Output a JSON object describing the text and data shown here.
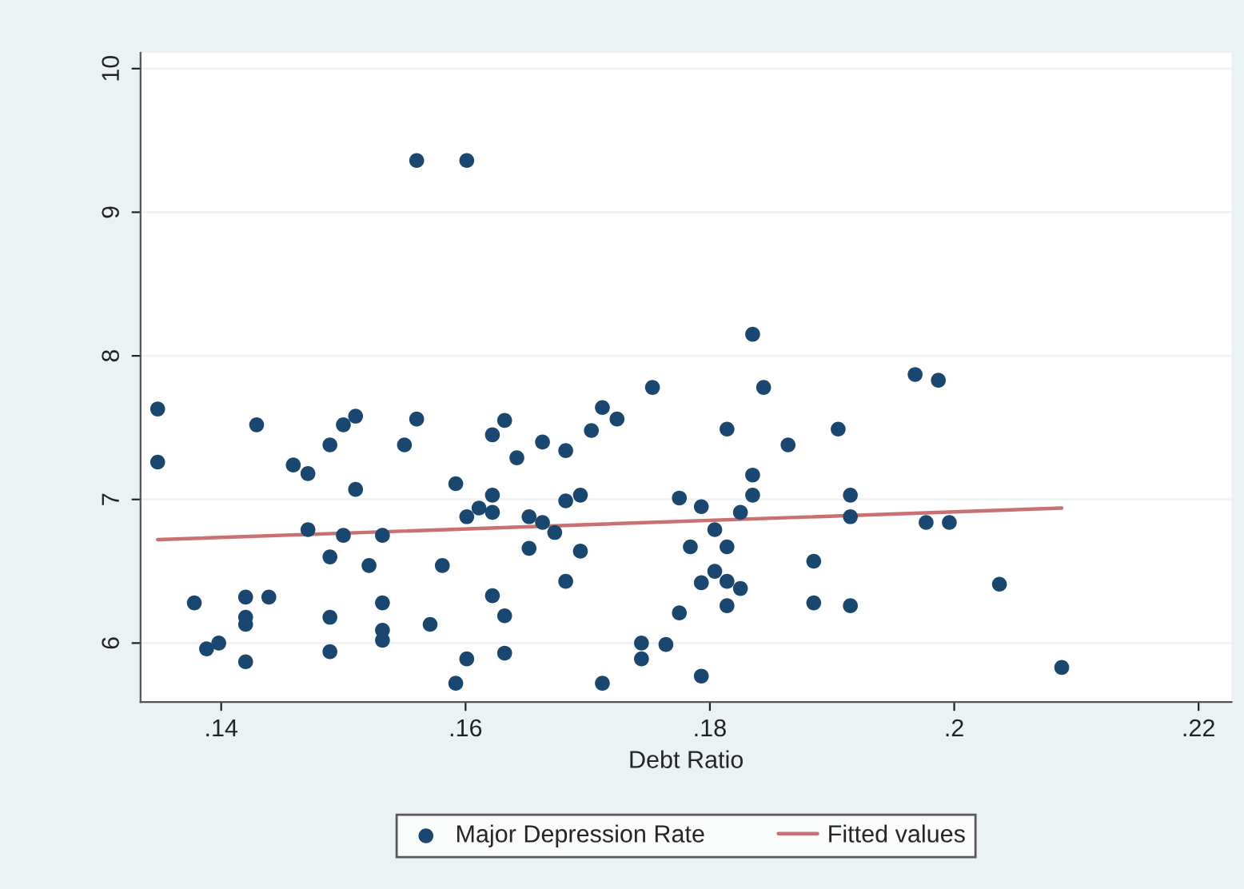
{
  "chart_data": {
    "type": "scatter",
    "xlabel": "Debt Ratio",
    "xlim": [
      0.1334,
      0.2227
    ],
    "ylim": [
      5.59,
      10.11
    ],
    "xticks": [
      {
        "value": 0.14,
        "label": ".14"
      },
      {
        "value": 0.16,
        "label": ".16"
      },
      {
        "value": 0.18,
        "label": ".18"
      },
      {
        "value": 0.2,
        "label": ".2"
      },
      {
        "value": 0.22,
        "label": ".22"
      }
    ],
    "yticks": [
      6,
      7,
      8,
      9,
      10
    ],
    "grid": "y",
    "legend": "bottom",
    "series": [
      {
        "name": "Major Depression Rate",
        "marker": "circle",
        "color": "#1a476f",
        "x": [
          0.1348,
          0.1348,
          0.1378,
          0.1388,
          0.1398,
          0.142,
          0.142,
          0.142,
          0.142,
          0.1429,
          0.1439,
          0.1459,
          0.1471,
          0.1471,
          0.1489,
          0.1489,
          0.1489,
          0.1489,
          0.15,
          0.15,
          0.151,
          0.151,
          0.1521,
          0.1532,
          0.1532,
          0.1532,
          0.1532,
          0.155,
          0.156,
          0.156,
          0.1601,
          0.1571,
          0.1581,
          0.1592,
          0.1592,
          0.1601,
          0.1601,
          0.1611,
          0.1622,
          0.1622,
          0.1622,
          0.1622,
          0.1632,
          0.1632,
          0.1632,
          0.1642,
          0.1652,
          0.1652,
          0.1663,
          0.1663,
          0.1673,
          0.1682,
          0.1682,
          0.1682,
          0.1694,
          0.1694,
          0.1703,
          0.1712,
          0.1712,
          0.1724,
          0.1744,
          0.1744,
          0.1764,
          0.1753,
          0.1775,
          0.1775,
          0.1784,
          0.1793,
          0.1793,
          0.1793,
          0.1804,
          0.1804,
          0.1814,
          0.1814,
          0.1814,
          0.1814,
          0.1825,
          0.1825,
          0.1835,
          0.1835,
          0.1835,
          0.1844,
          0.1864,
          0.1885,
          0.1885,
          0.1905,
          0.1915,
          0.1915,
          0.1915,
          0.1968,
          0.1987,
          0.1977,
          0.1996,
          0.2037,
          0.2088
        ],
        "values": [
          7.63,
          7.26,
          6.28,
          5.96,
          6.0,
          6.32,
          6.18,
          6.13,
          5.87,
          7.52,
          6.32,
          7.24,
          7.18,
          6.79,
          7.38,
          6.6,
          6.18,
          5.94,
          7.52,
          6.75,
          7.58,
          7.07,
          6.54,
          6.75,
          6.28,
          6.09,
          6.02,
          7.38,
          7.56,
          9.36,
          9.36,
          6.13,
          6.54,
          7.11,
          5.72,
          6.88,
          5.89,
          6.94,
          6.91,
          7.03,
          7.45,
          6.33,
          7.55,
          6.19,
          5.93,
          7.29,
          6.88,
          6.66,
          7.4,
          6.84,
          6.77,
          7.34,
          6.99,
          6.43,
          7.03,
          6.64,
          7.48,
          7.64,
          5.72,
          7.56,
          6.0,
          5.89,
          5.99,
          7.78,
          7.01,
          6.21,
          6.67,
          6.95,
          6.42,
          5.77,
          6.79,
          6.5,
          7.49,
          6.67,
          6.43,
          6.26,
          6.38,
          6.91,
          8.15,
          7.17,
          7.03,
          7.78,
          7.38,
          6.57,
          6.28,
          7.49,
          7.03,
          6.88,
          6.26,
          7.87,
          7.83,
          6.84,
          6.84,
          6.41,
          5.83
        ]
      },
      {
        "name": "Fitted values",
        "type": "line",
        "color": "#c97070",
        "x": [
          0.1348,
          0.2088
        ],
        "values": [
          6.72,
          6.94
        ]
      }
    ]
  }
}
